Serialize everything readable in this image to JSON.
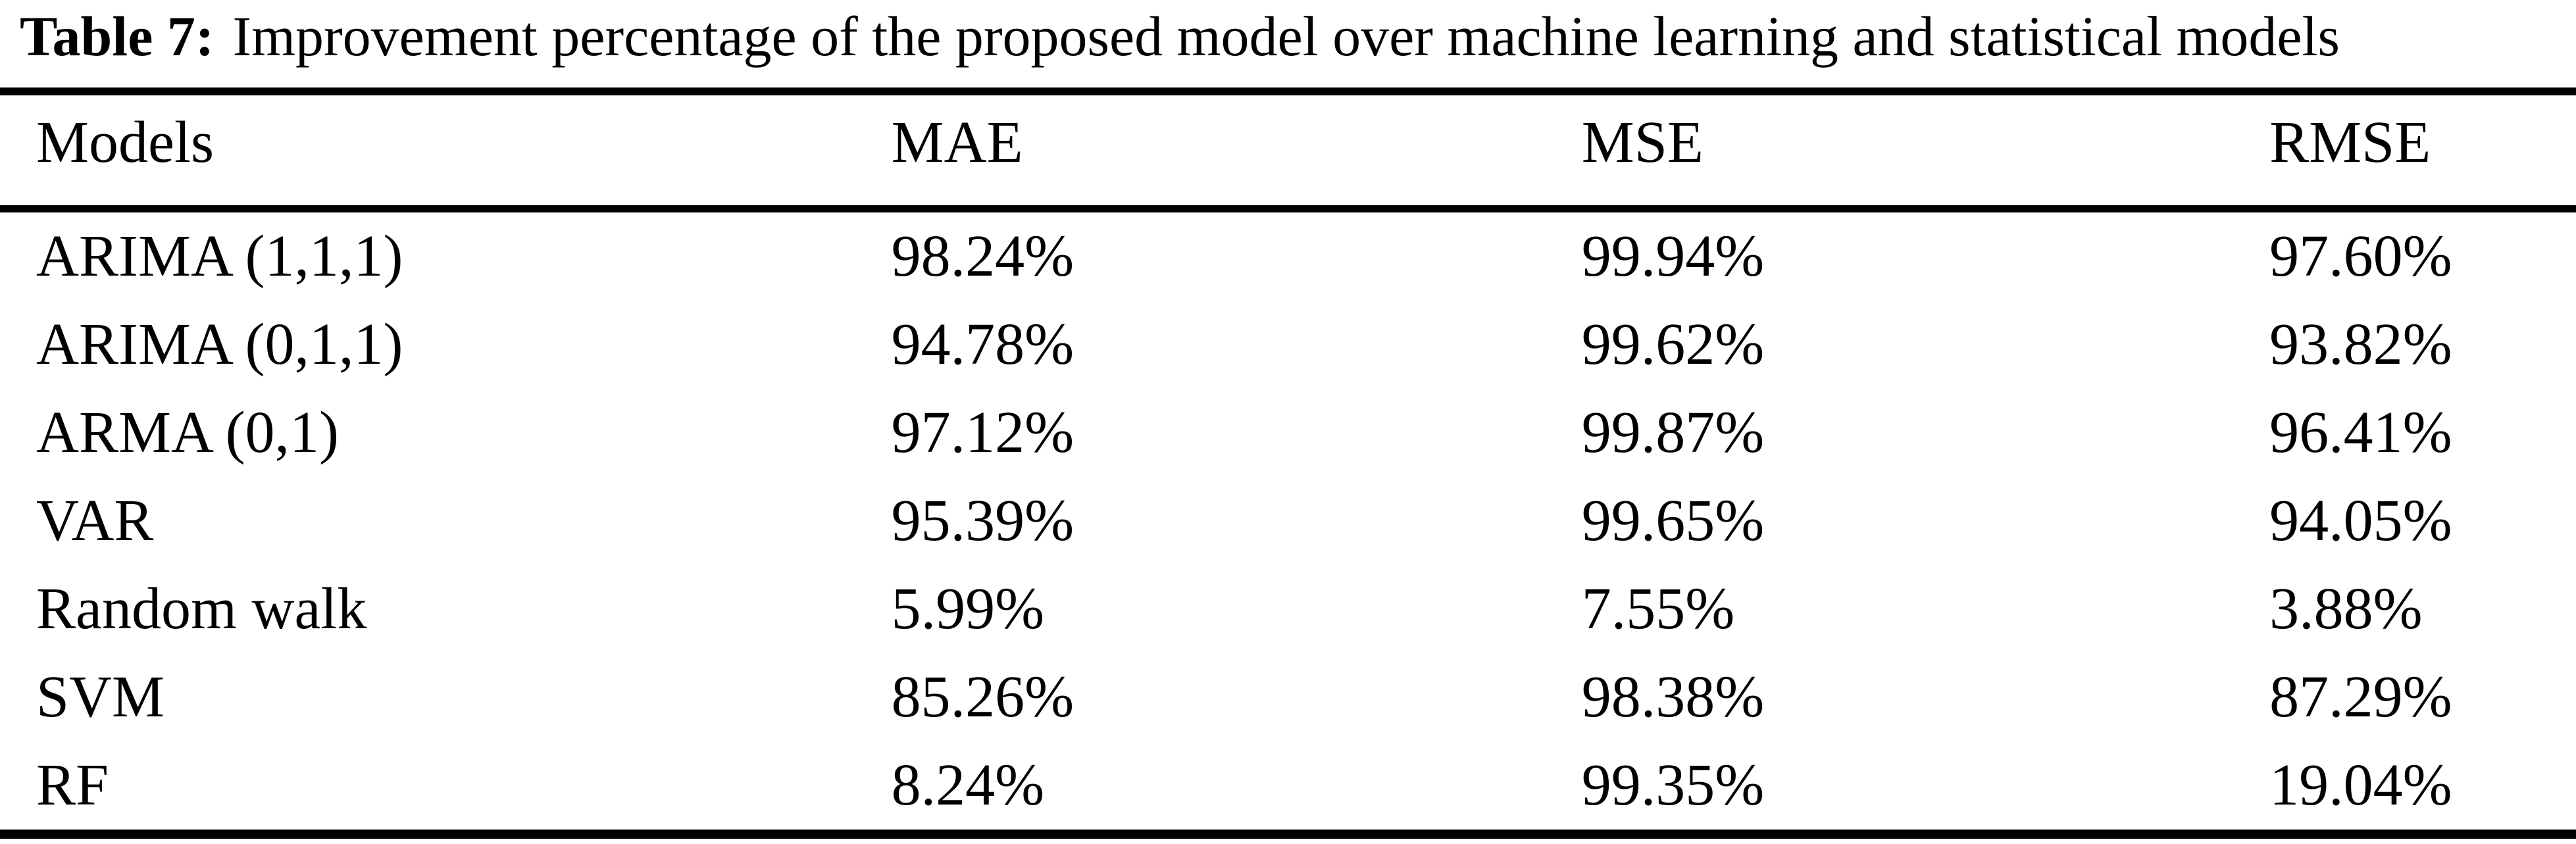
{
  "caption": {
    "label": "Table 7:",
    "text": "Improvement percentage of the proposed model over machine learning and statistical models"
  },
  "table": {
    "columns": [
      "Models",
      "MAE",
      "MSE",
      "RMSE"
    ],
    "rows": [
      [
        "ARIMA (1,1,1)",
        "98.24%",
        "99.94%",
        "97.60%"
      ],
      [
        "ARIMA (0,1,1)",
        "94.78%",
        "99.62%",
        "93.82%"
      ],
      [
        "ARMA (0,1)",
        "97.12%",
        "99.87%",
        "96.41%"
      ],
      [
        "VAR",
        "95.39%",
        "99.65%",
        "94.05%"
      ],
      [
        "Random walk",
        "5.99%",
        "7.55%",
        "3.88%"
      ],
      [
        "SVM",
        "85.26%",
        "98.38%",
        "87.29%"
      ],
      [
        "RF",
        "8.24%",
        "99.35%",
        "19.04%"
      ]
    ]
  },
  "chart_data": {
    "type": "table",
    "title": "Table 7: Improvement percentage of the proposed model over machine learning and statistical models",
    "columns": [
      "Models",
      "MAE",
      "MSE",
      "RMSE"
    ],
    "rows": [
      {
        "model": "ARIMA (1,1,1)",
        "MAE": "98.24%",
        "MSE": "99.94%",
        "RMSE": "97.60%"
      },
      {
        "model": "ARIMA (0,1,1)",
        "MAE": "94.78%",
        "MSE": "99.62%",
        "RMSE": "93.82%"
      },
      {
        "model": "ARMA (0,1)",
        "MAE": "97.12%",
        "MSE": "99.87%",
        "RMSE": "96.41%"
      },
      {
        "model": "VAR",
        "MAE": "95.39%",
        "MSE": "99.65%",
        "RMSE": "94.05%"
      },
      {
        "model": "Random walk",
        "MAE": "5.99%",
        "MSE": "7.55%",
        "RMSE": "3.88%"
      },
      {
        "model": "SVM",
        "MAE": "85.26%",
        "MSE": "98.38%",
        "RMSE": "87.29%"
      },
      {
        "model": "RF",
        "MAE": "8.24%",
        "MSE": "99.35%",
        "RMSE": "19.04%"
      }
    ]
  }
}
